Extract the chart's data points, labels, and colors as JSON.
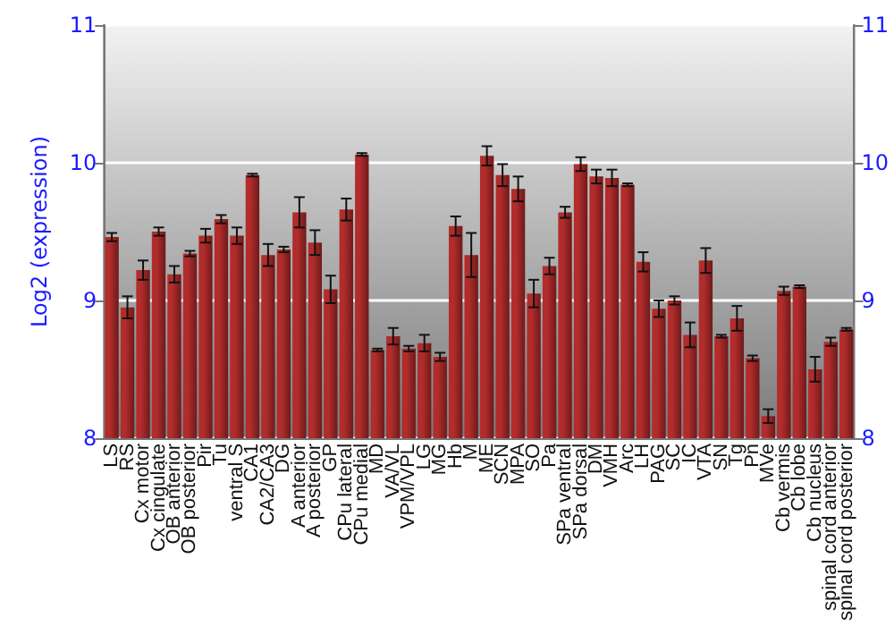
{
  "chart_data": {
    "type": "bar",
    "ylabel": "Log2 (expression)",
    "categories": [
      "LS",
      "RS",
      "Cx motor",
      "Cx cingulate",
      "OB anterior",
      "OB posterior",
      "Pir",
      "Tu",
      "ventral S",
      "CA1",
      "CA2/CA3",
      "DG",
      "A anterior",
      "A posterior",
      "GP",
      "CPu lateral",
      "CPu medial",
      "MD",
      "VA/VL",
      "VPM/VPL",
      "LG",
      "MG",
      "Hb",
      "M",
      "ME",
      "SCN",
      "MPA",
      "SO",
      "Pa",
      "SPa ventral",
      "SPa dorsal",
      "DM",
      "VMH",
      "Arc",
      "LH",
      "PAG",
      "SC",
      "IC",
      "VTA",
      "SN",
      "Tg",
      "Pn",
      "MVe",
      "Cb vermis",
      "Cb lobe",
      "Cb nucleus",
      "spinal cord anterior",
      "spinal cord posterior"
    ],
    "series": [
      {
        "color": "#b22c2c",
        "values": [
          9.46,
          8.95,
          9.22,
          9.5,
          9.19,
          9.34,
          9.47,
          9.59,
          9.47,
          9.91,
          9.33,
          9.37,
          9.64,
          9.42,
          9.08,
          9.66,
          10.06,
          8.64,
          8.74,
          8.65,
          8.69,
          8.59,
          9.54,
          9.33,
          10.05,
          9.91,
          9.81,
          9.05,
          9.25,
          9.64,
          9.99,
          9.9,
          9.89,
          9.84,
          9.28,
          8.94,
          9.0,
          8.75,
          9.29,
          8.74,
          8.87,
          8.58,
          8.16,
          9.07,
          9.1,
          8.5,
          8.7,
          8.79
        ],
        "errors": [
          0.03,
          0.08,
          0.07,
          0.03,
          0.06,
          0.02,
          0.05,
          0.03,
          0.06,
          0.01,
          0.08,
          0.02,
          0.11,
          0.09,
          0.1,
          0.08,
          0.01,
          0.01,
          0.06,
          0.02,
          0.06,
          0.03,
          0.07,
          0.16,
          0.07,
          0.08,
          0.09,
          0.1,
          0.06,
          0.04,
          0.05,
          0.05,
          0.06,
          0.01,
          0.07,
          0.06,
          0.03,
          0.09,
          0.09,
          0.01,
          0.09,
          0.02,
          0.05,
          0.03,
          0.01,
          0.09,
          0.03,
          0.01
        ]
      }
    ],
    "ylim": [
      8,
      11
    ],
    "yticks": [
      8,
      9,
      10,
      11
    ],
    "y2lim": [
      8,
      11
    ],
    "y2ticks": [
      8,
      9,
      10,
      11
    ],
    "grid": "y"
  }
}
